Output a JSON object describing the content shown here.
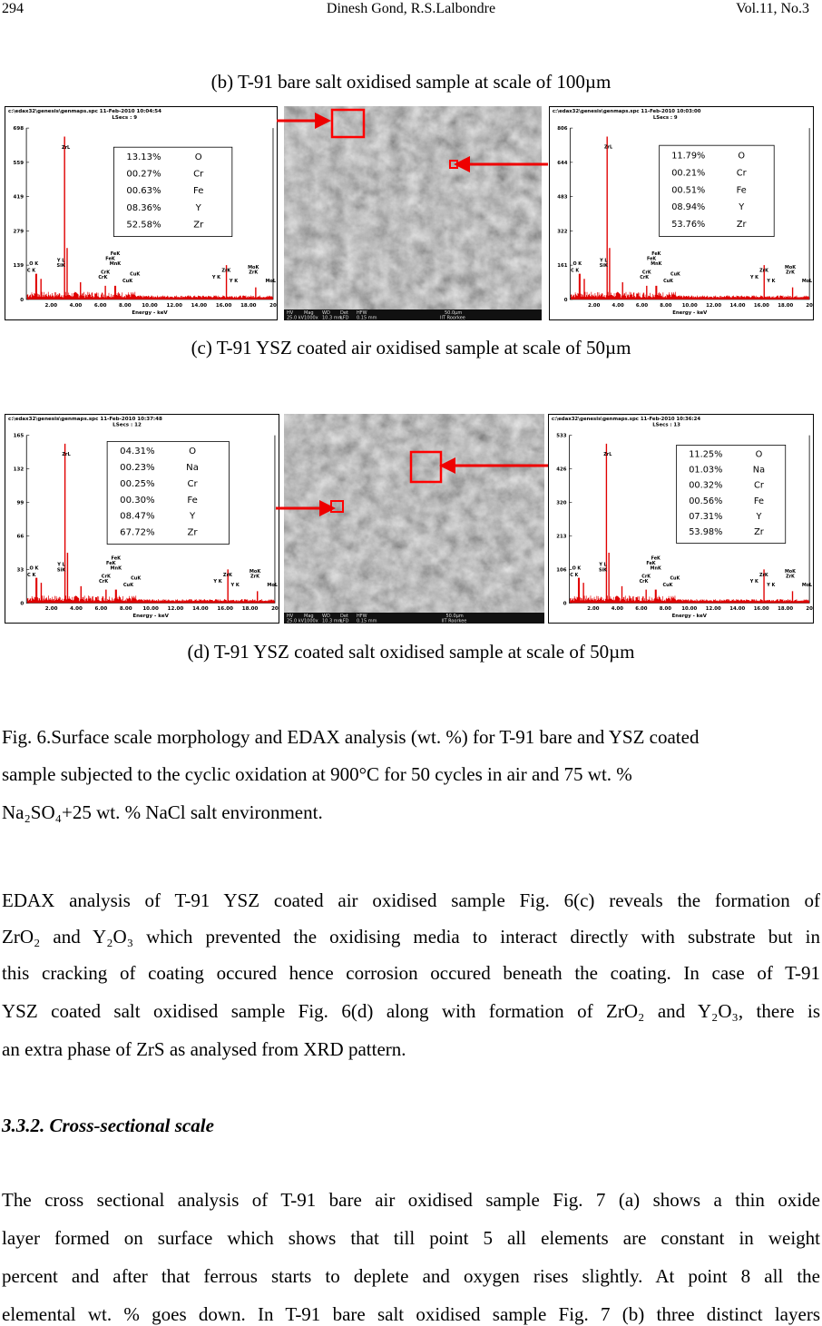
{
  "header": {
    "page": "294",
    "authors": "Dinesh Gond, R.S.Lalbondre",
    "volume": "Vol.11, No.3"
  },
  "figure": {
    "captions": [
      "(b) T-91 bare  salt oxidised sample at scale of 100µm",
      "(c) T-91 YSZ coated air oxidised sample at scale of 50µm",
      "(d) T-91 YSZ coated salt oxidised sample at scale of 50µm"
    ],
    "rows": [
      {
        "left": {
          "file": "c:\\edax32\\genesis\\genmaps.spc  11-Feb-2010 10:04:54",
          "lsecs": "LSecs : 9",
          "yticks": [
            "698",
            "559",
            "419",
            "279",
            "139",
            "0"
          ],
          "xticks": [
            "2.00",
            "4.00",
            "6.00",
            "8.00",
            "10.00",
            "12.00",
            "14.00",
            "16.00",
            "18.00",
            "20"
          ],
          "xlabel": "Energy - keV",
          "peaks": [
            "ZrL",
            "O K",
            "C K",
            "Y L",
            "SiK",
            "FeK",
            "FeK",
            "MnK",
            "CrK",
            "CrK",
            "CuK",
            "CuK",
            "Y K",
            "ZrK",
            "Y K",
            "MoK",
            "ZrK",
            "MoL"
          ],
          "composition": [
            [
              "13.13%",
              "O"
            ],
            [
              "00.27%",
              "Cr"
            ],
            [
              "00.63%",
              "Fe"
            ],
            [
              "08.36%",
              "Y"
            ],
            [
              "52.58%",
              "Zr"
            ]
          ]
        },
        "sem": {
          "info": [
            "HV",
            "Mag",
            "WD",
            "Det",
            "HFW",
            "25.0 kV",
            "1000x",
            "10.3 mm",
            "LFD",
            "0.15 mm",
            "50.0µm",
            "IIT Roorkee"
          ]
        },
        "right": {
          "file": "c:\\edax32\\genesis\\genmaps.spc  11-Feb-2010 10:03:00",
          "lsecs": "LSecs : 9",
          "yticks": [
            "806",
            "644",
            "483",
            "322",
            "161",
            "0"
          ],
          "xticks": [
            "2.00",
            "4.00",
            "6.00",
            "8.00",
            "10.00",
            "12.00",
            "14.00",
            "16.00",
            "18.00",
            "20"
          ],
          "xlabel": "Energy - keV",
          "peaks": [
            "ZrL",
            "O K",
            "C K",
            "Y L",
            "SiK",
            "FeK",
            "FeK",
            "MnK",
            "CrK",
            "CrK",
            "CuK",
            "CuK",
            "Y K",
            "ZrK",
            "Y K",
            "MoK",
            "ZrK",
            "MoL"
          ],
          "composition": [
            [
              "11.79%",
              "O"
            ],
            [
              "00.21%",
              "Cr"
            ],
            [
              "00.51%",
              "Fe"
            ],
            [
              "08.94%",
              "Y"
            ],
            [
              "53.76%",
              "Zr"
            ]
          ]
        }
      },
      {
        "left": {
          "file": "c:\\edax32\\genesis\\genmaps.spc  11-Feb-2010 10:37:48",
          "lsecs": "LSecs : 12",
          "yticks": [
            "165",
            "132",
            "99",
            "66",
            "33",
            "0"
          ],
          "xticks": [
            "2.00",
            "4.00",
            "6.00",
            "8.00",
            "10.00",
            "12.00",
            "14.00",
            "16.00",
            "18.00",
            "20"
          ],
          "xlabel": "Energy - keV",
          "peaks": [
            "ZrL",
            "O K",
            "C K",
            "Y L",
            "SiK",
            "FeK",
            "FeK",
            "MnK",
            "CrK",
            "CrK",
            "CuK",
            "CuK",
            "Y K",
            "ZrK",
            "Y K",
            "MoK",
            "ZrK",
            "MoL"
          ],
          "composition": [
            [
              "04.31%",
              "O"
            ],
            [
              "00.23%",
              "Na"
            ],
            [
              "00.25%",
              "Cr"
            ],
            [
              "00.30%",
              "Fe"
            ],
            [
              "08.47%",
              "Y"
            ],
            [
              "67.72%",
              "Zr"
            ]
          ]
        },
        "sem": {
          "info": [
            "HV",
            "Mag",
            "WD",
            "Det",
            "HFW",
            "25.0 kV",
            "1000x",
            "10.3 mm",
            "LFD",
            "0.15 mm",
            "50.0µm",
            "IIT Roorkee"
          ]
        },
        "right": {
          "file": "c:\\edax32\\genesis\\genmaps.spc  11-Feb-2010 10:36:24",
          "lsecs": "LSecs : 13",
          "yticks": [
            "533",
            "426",
            "320",
            "213",
            "106",
            "0"
          ],
          "xticks": [
            "2.00",
            "4.00",
            "6.00",
            "8.00",
            "10.00",
            "12.00",
            "14.00",
            "16.00",
            "18.00",
            "20"
          ],
          "xlabel": "Energy - keV",
          "peaks": [
            "ZrL",
            "O K",
            "C K",
            "Y L",
            "SiK",
            "FeK",
            "FeK",
            "MnK",
            "CrK",
            "CrK",
            "CuK",
            "CuK",
            "Y K",
            "ZrK",
            "Y K",
            "MoK",
            "ZrK",
            "MoL"
          ],
          "composition": [
            [
              "11.25%",
              "O"
            ],
            [
              "01.03%",
              "Na"
            ],
            [
              "00.32%",
              "Cr"
            ],
            [
              "00.56%",
              "Fe"
            ],
            [
              "07.31%",
              "Y"
            ],
            [
              "53.98%",
              "Zr"
            ]
          ]
        }
      }
    ],
    "description": [
      "Fig. 6.Surface scale morphology and EDAX analysis (wt. %) for T-91 bare and YSZ coated",
      "sample subjected to the cyclic oxidation at 900°C for 50 cycles in air and 75 wt. %",
      "Na₂SO₄+25 wt. % NaCl  salt environment."
    ]
  },
  "body": {
    "paragraph1": [
      "EDAX analysis of  T-91 YSZ  coated  air oxidised sample Fig. 6(c) reveals the formation of",
      "ZrO₂ and Y₂O₃ which prevented the oxidising media to interact directly with substrate but in",
      "this cracking of coating occured hence corrosion occured beneath the coating. In case of T-91",
      "YSZ coated salt oxidised sample Fig. 6(d) along with formation of  ZrO₂ and Y₂O₃, there is",
      "an extra phase of  ZrS as analysed from XRD pattern."
    ],
    "heading": "3.3.2. Cross-sectional scale",
    "paragraph2": [
      "The cross sectional analysis of T-91 bare air oxidised sample Fig. 7 (a) shows a thin oxide",
      "layer formed on surface which shows that till point 5 all elements are constant in weight",
      "percent and after that ferrous starts to deplete and oxygen rises slightly. At point 8 all the",
      "elemental wt. % goes down. In T-91 bare salt oxidised sample Fig. 7 (b) three distinct layers"
    ]
  }
}
